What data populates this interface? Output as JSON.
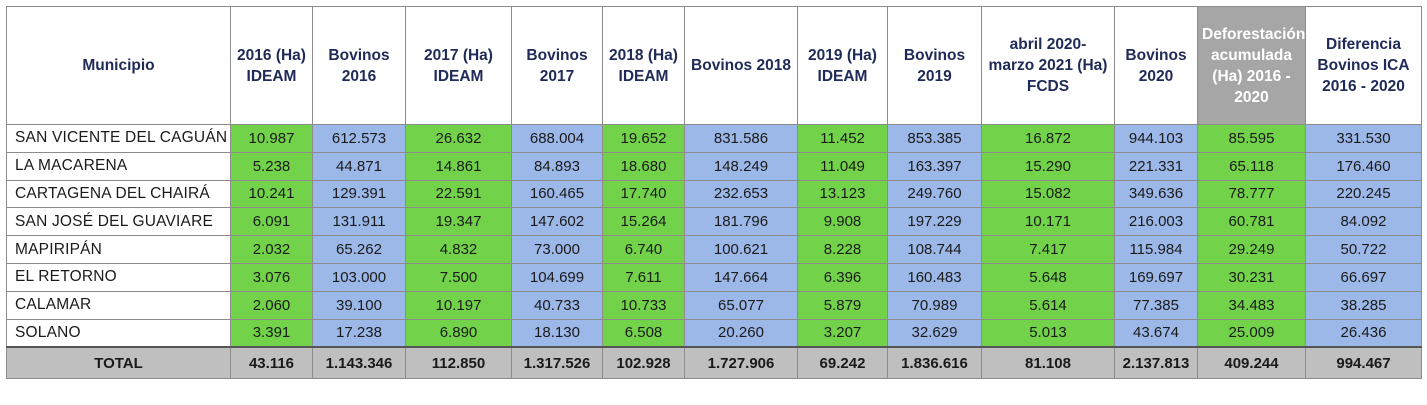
{
  "colors": {
    "green": "#72d34a",
    "blue": "#9cb8e8",
    "header_gray": "#a6a6a6",
    "total_gray": "#bfbfbf"
  },
  "headers": [
    "Municipio",
    "2016 (Ha) IDEAM",
    "Bovinos 2016",
    "2017 (Ha) IDEAM",
    "Bovinos 2017",
    "2018 (Ha) IDEAM",
    "Bovinos 2018",
    "2019 (Ha) IDEAM",
    "Bovinos 2019",
    "abril 2020- marzo 2021 (Ha) FCDS",
    "Bovinos 2020",
    "Deforestación acumulada (Ha) 2016 - 2020",
    "Diferencia Bovinos ICA 2016 - 2020"
  ],
  "rows": [
    [
      "SAN VICENTE DEL CAGUÁN",
      "10.987",
      "612.573",
      "26.632",
      "688.004",
      "19.652",
      "831.586",
      "11.452",
      "853.385",
      "16.872",
      "944.103",
      "85.595",
      "331.530"
    ],
    [
      "LA MACARENA",
      "5.238",
      "44.871",
      "14.861",
      "84.893",
      "18.680",
      "148.249",
      "11.049",
      "163.397",
      "15.290",
      "221.331",
      "65.118",
      "176.460"
    ],
    [
      "CARTAGENA DEL CHAIRÁ",
      "10.241",
      "129.391",
      "22.591",
      "160.465",
      "17.740",
      "232.653",
      "13.123",
      "249.760",
      "15.082",
      "349.636",
      "78.777",
      "220.245"
    ],
    [
      "SAN JOSÉ DEL GUAVIARE",
      "6.091",
      "131.911",
      "19.347",
      "147.602",
      "15.264",
      "181.796",
      "9.908",
      "197.229",
      "10.171",
      "216.003",
      "60.781",
      "84.092"
    ],
    [
      "MAPIRIPÁN",
      "2.032",
      "65.262",
      "4.832",
      "73.000",
      "6.740",
      "100.621",
      "8.228",
      "108.744",
      "7.417",
      "115.984",
      "29.249",
      "50.722"
    ],
    [
      "EL RETORNO",
      "3.076",
      "103.000",
      "7.500",
      "104.699",
      "7.611",
      "147.664",
      "6.396",
      "160.483",
      "5.648",
      "169.697",
      "30.231",
      "66.697"
    ],
    [
      "CALAMAR",
      "2.060",
      "39.100",
      "10.197",
      "40.733",
      "10.733",
      "65.077",
      "5.879",
      "70.989",
      "5.614",
      "77.385",
      "34.483",
      "38.285"
    ],
    [
      "SOLANO",
      "3.391",
      "17.238",
      "6.890",
      "18.130",
      "6.508",
      "20.260",
      "3.207",
      "32.629",
      "5.013",
      "43.674",
      "25.009",
      "26.436"
    ]
  ],
  "total": [
    "TOTAL",
    "43.116",
    "1.143.346",
    "112.850",
    "1.317.526",
    "102.928",
    "1.727.906",
    "69.242",
    "1.836.616",
    "81.108",
    "2.137.813",
    "409.244",
    "994.467"
  ]
}
